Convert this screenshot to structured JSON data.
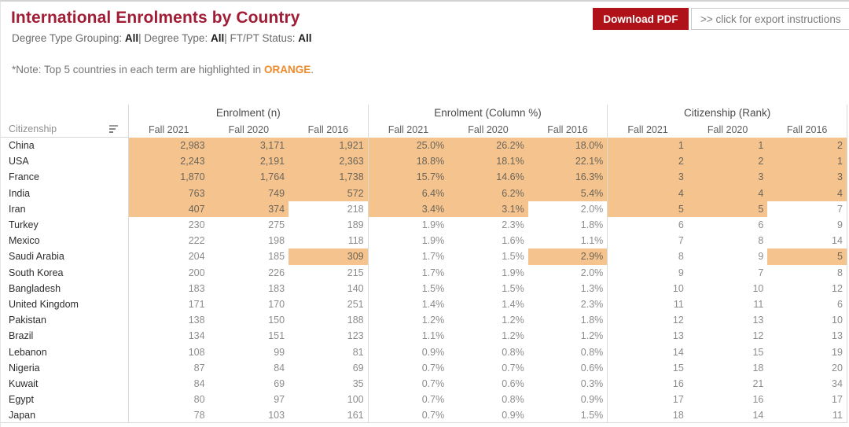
{
  "header": {
    "title": "International Enrolments by Country",
    "filters": [
      {
        "label": "Degree Type Grouping:",
        "value": "All"
      },
      {
        "label": "Degree Type:",
        "value": "All"
      },
      {
        "label": "FT/PT Status:",
        "value": "All"
      }
    ],
    "filter_separator": "| ",
    "note_prefix": "*Note: Top 5 countries in each term are highlighted in ",
    "note_highlight": "ORANGE",
    "note_suffix": ".",
    "download_button": "Download PDF",
    "export_link": ">> click for export instructions"
  },
  "colors": {
    "title_red": "#A01D35",
    "button_red": "#AF1218",
    "highlight_orange": "#F5C48E",
    "note_orange": "#F08A2B"
  },
  "table": {
    "row_header": "Citizenship",
    "sort_icon": "sort-descending-icon",
    "groups": [
      {
        "label": "Enrolment (n)"
      },
      {
        "label": "Enrolment (Column %)"
      },
      {
        "label": "Citizenship (Rank)"
      }
    ],
    "terms": [
      "Fall 2021",
      "Fall 2020",
      "Fall 2016"
    ],
    "highlight_rule_max_rank": 5,
    "rows": [
      {
        "country": "China",
        "enrolment": [
          "2,983",
          "3,171",
          "1,921"
        ],
        "percent": [
          "25.0%",
          "26.2%",
          "18.0%"
        ],
        "rank": [
          "1",
          "1",
          "2"
        ]
      },
      {
        "country": "USA",
        "enrolment": [
          "2,243",
          "2,191",
          "2,363"
        ],
        "percent": [
          "18.8%",
          "18.1%",
          "22.1%"
        ],
        "rank": [
          "2",
          "2",
          "1"
        ]
      },
      {
        "country": "France",
        "enrolment": [
          "1,870",
          "1,764",
          "1,738"
        ],
        "percent": [
          "15.7%",
          "14.6%",
          "16.3%"
        ],
        "rank": [
          "3",
          "3",
          "3"
        ]
      },
      {
        "country": "India",
        "enrolment": [
          "763",
          "749",
          "572"
        ],
        "percent": [
          "6.4%",
          "6.2%",
          "5.4%"
        ],
        "rank": [
          "4",
          "4",
          "4"
        ]
      },
      {
        "country": "Iran",
        "enrolment": [
          "407",
          "374",
          "218"
        ],
        "percent": [
          "3.4%",
          "3.1%",
          "2.0%"
        ],
        "rank": [
          "5",
          "5",
          "7"
        ]
      },
      {
        "country": "Turkey",
        "enrolment": [
          "230",
          "275",
          "189"
        ],
        "percent": [
          "1.9%",
          "2.3%",
          "1.8%"
        ],
        "rank": [
          "6",
          "6",
          "9"
        ]
      },
      {
        "country": "Mexico",
        "enrolment": [
          "222",
          "198",
          "118"
        ],
        "percent": [
          "1.9%",
          "1.6%",
          "1.1%"
        ],
        "rank": [
          "7",
          "8",
          "14"
        ]
      },
      {
        "country": "Saudi Arabia",
        "enrolment": [
          "204",
          "185",
          "309"
        ],
        "percent": [
          "1.7%",
          "1.5%",
          "2.9%"
        ],
        "rank": [
          "8",
          "9",
          "5"
        ]
      },
      {
        "country": "South Korea",
        "enrolment": [
          "200",
          "226",
          "215"
        ],
        "percent": [
          "1.7%",
          "1.9%",
          "2.0%"
        ],
        "rank": [
          "9",
          "7",
          "8"
        ]
      },
      {
        "country": "Bangladesh",
        "enrolment": [
          "183",
          "183",
          "140"
        ],
        "percent": [
          "1.5%",
          "1.5%",
          "1.3%"
        ],
        "rank": [
          "10",
          "10",
          "12"
        ]
      },
      {
        "country": "United Kingdom",
        "enrolment": [
          "171",
          "170",
          "251"
        ],
        "percent": [
          "1.4%",
          "1.4%",
          "2.3%"
        ],
        "rank": [
          "11",
          "11",
          "6"
        ]
      },
      {
        "country": "Pakistan",
        "enrolment": [
          "138",
          "150",
          "188"
        ],
        "percent": [
          "1.2%",
          "1.2%",
          "1.8%"
        ],
        "rank": [
          "12",
          "13",
          "10"
        ]
      },
      {
        "country": "Brazil",
        "enrolment": [
          "134",
          "151",
          "123"
        ],
        "percent": [
          "1.1%",
          "1.2%",
          "1.2%"
        ],
        "rank": [
          "13",
          "12",
          "13"
        ]
      },
      {
        "country": "Lebanon",
        "enrolment": [
          "108",
          "99",
          "81"
        ],
        "percent": [
          "0.9%",
          "0.8%",
          "0.8%"
        ],
        "rank": [
          "14",
          "15",
          "19"
        ]
      },
      {
        "country": "Nigeria",
        "enrolment": [
          "87",
          "84",
          "69"
        ],
        "percent": [
          "0.7%",
          "0.7%",
          "0.6%"
        ],
        "rank": [
          "15",
          "18",
          "20"
        ]
      },
      {
        "country": "Kuwait",
        "enrolment": [
          "84",
          "69",
          "35"
        ],
        "percent": [
          "0.7%",
          "0.6%",
          "0.3%"
        ],
        "rank": [
          "16",
          "21",
          "34"
        ]
      },
      {
        "country": "Egypt",
        "enrolment": [
          "80",
          "97",
          "100"
        ],
        "percent": [
          "0.7%",
          "0.8%",
          "0.9%"
        ],
        "rank": [
          "17",
          "16",
          "17"
        ]
      },
      {
        "country": "Japan",
        "enrolment": [
          "78",
          "103",
          "161"
        ],
        "percent": [
          "0.7%",
          "0.9%",
          "1.5%"
        ],
        "rank": [
          "18",
          "14",
          "11"
        ]
      }
    ]
  }
}
